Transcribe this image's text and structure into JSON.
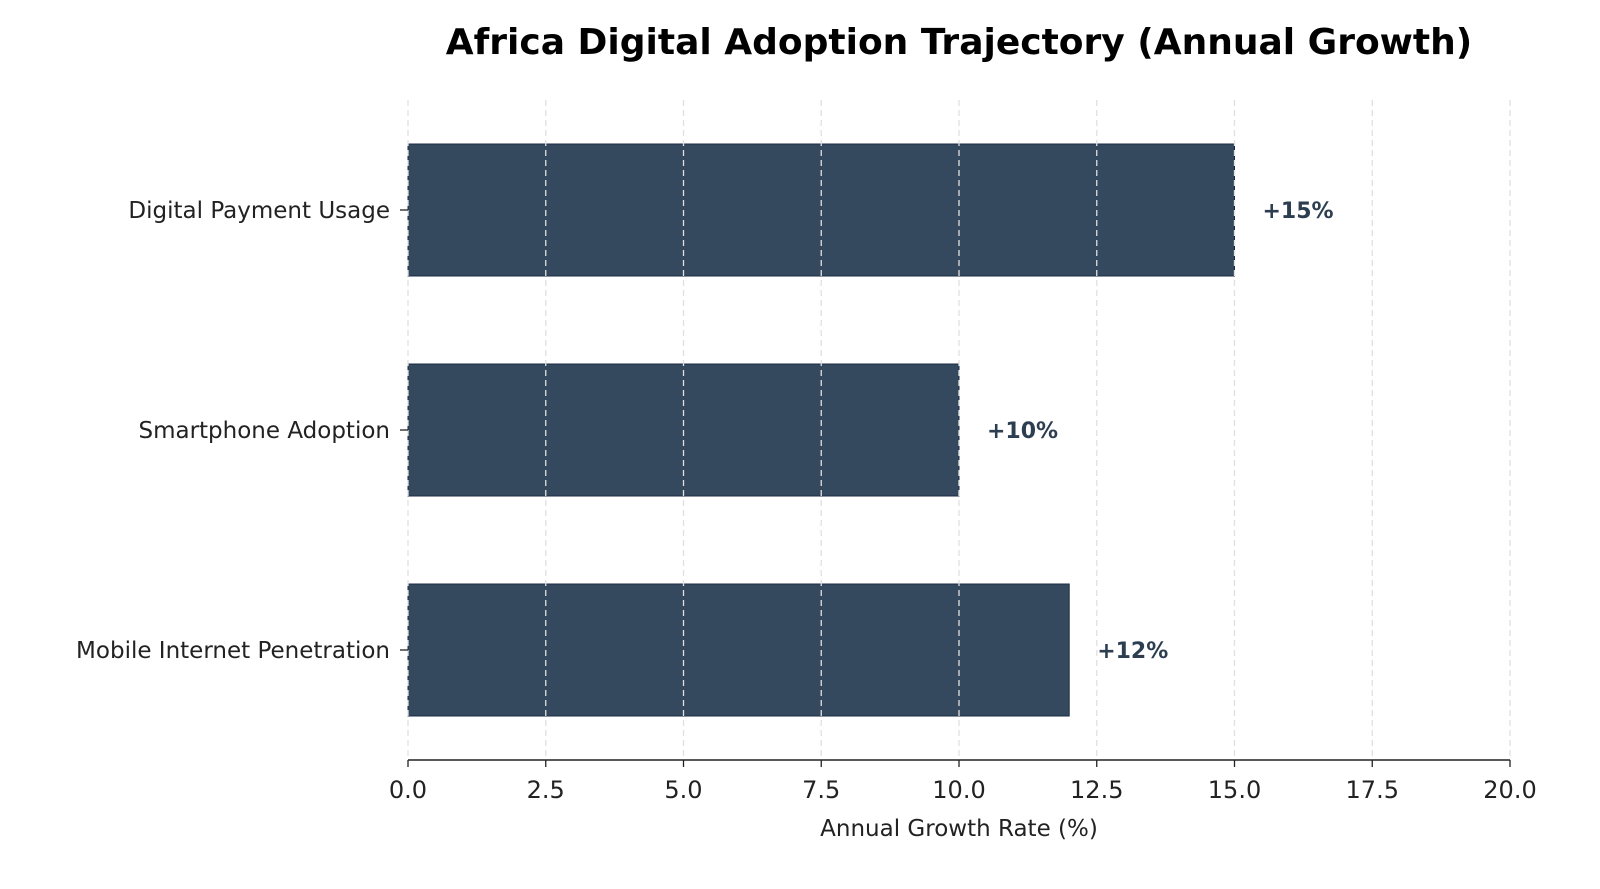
{
  "chart_data": {
    "type": "bar",
    "orientation": "horizontal",
    "title": "Africa Digital Adoption Trajectory (Annual Growth)",
    "xlabel": "Annual Growth Rate (%)",
    "ylabel": "",
    "categories": [
      "Mobile Internet Penetration",
      "Smartphone Adoption",
      "Digital Payment Usage"
    ],
    "values": [
      12,
      10,
      15
    ],
    "data_labels": [
      "+12%",
      "+10%",
      "+15%"
    ],
    "xlim": [
      0,
      20
    ],
    "xticks": [
      0,
      2.5,
      5,
      7.5,
      10,
      12.5,
      15,
      17.5,
      20
    ],
    "xtick_labels": [
      "0.0",
      "2.5",
      "5.0",
      "7.5",
      "10.0",
      "12.5",
      "15.0",
      "17.5",
      "20.0"
    ],
    "grid": "x dashed",
    "colors": {
      "bar": "#34495e",
      "bar_edge": "#1b2a44",
      "label": "#2c3e50",
      "grid": "#e0e0e0"
    }
  }
}
